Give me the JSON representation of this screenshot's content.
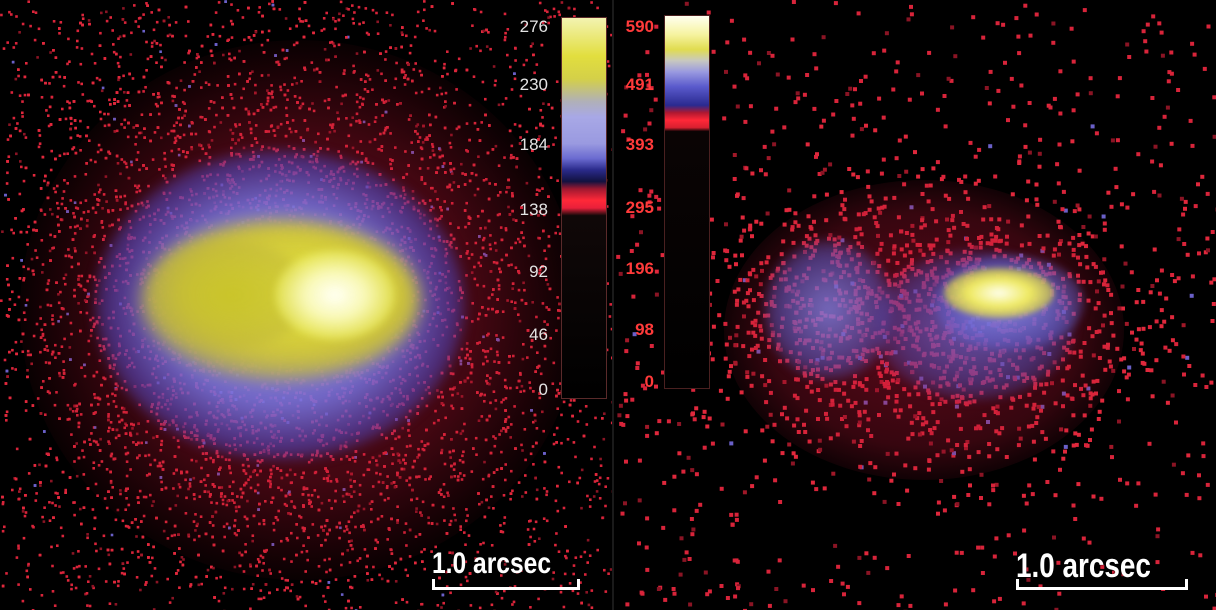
{
  "colors": {
    "background": "#000000",
    "halo_red": "#d81e3c",
    "mid_blue": "#8c8ce6",
    "bright_yellow": "#e6e33c",
    "core_white": "#fffff0",
    "left_tick_color": "#e4e4e4",
    "right_tick_color": "#ff3a3a"
  },
  "left_panel": {
    "colorbar_ticks": [
      "276",
      "230",
      "184",
      "138",
      "92",
      "46",
      "0"
    ],
    "scale_bar_label": "1.0 arcsec"
  },
  "right_panel": {
    "colorbar_ticks": [
      "590",
      "491",
      "393",
      "295",
      "196",
      "98",
      "0"
    ],
    "scale_bar_label": "1.0 arcsec"
  }
}
